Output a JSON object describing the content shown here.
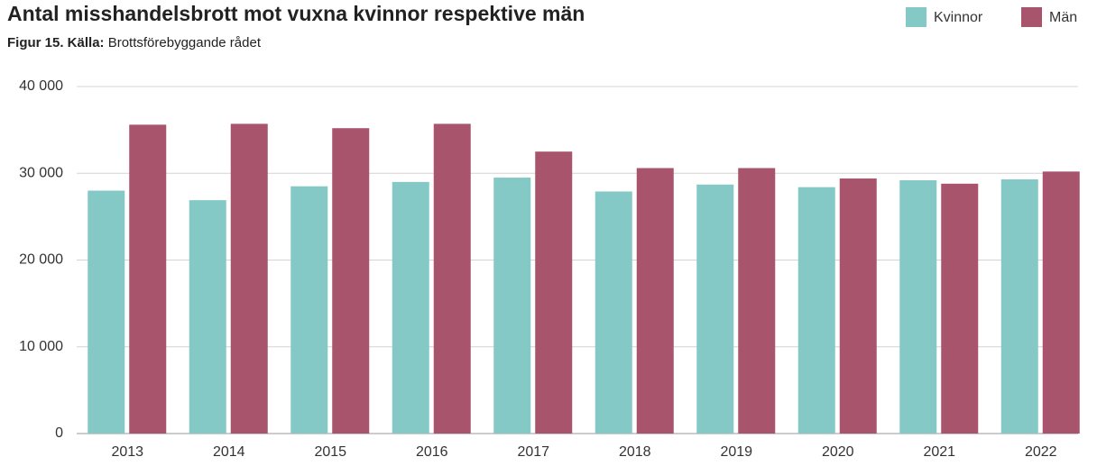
{
  "chart_data": {
    "type": "bar",
    "title": "Antal misshandelsbrott mot vuxna kvinnor respektive män",
    "figure_label": "Figur 15. Källa:",
    "source": "Brottsförebyggande rådet",
    "categories": [
      "2013",
      "2014",
      "2015",
      "2016",
      "2017",
      "2018",
      "2019",
      "2020",
      "2021",
      "2022"
    ],
    "series": [
      {
        "name": "Kvinnor",
        "color": "#84c9c5",
        "values": [
          28000,
          26900,
          28500,
          29000,
          29500,
          27900,
          28700,
          28400,
          29200,
          29300
        ]
      },
      {
        "name": "Män",
        "color": "#a8546c",
        "values": [
          35600,
          35700,
          35200,
          35700,
          32500,
          30600,
          30600,
          29400,
          28800,
          30200
        ]
      }
    ],
    "ylim": [
      0,
      40000
    ],
    "yticks": [
      0,
      {
        "value": 10000,
        "label": "10 000"
      },
      {
        "value": 20000,
        "label": "20 000"
      },
      {
        "value": 30000,
        "label": "30 000"
      },
      {
        "value": 40000,
        "label": "40 000"
      }
    ],
    "grid": true,
    "legend": "top-right"
  }
}
